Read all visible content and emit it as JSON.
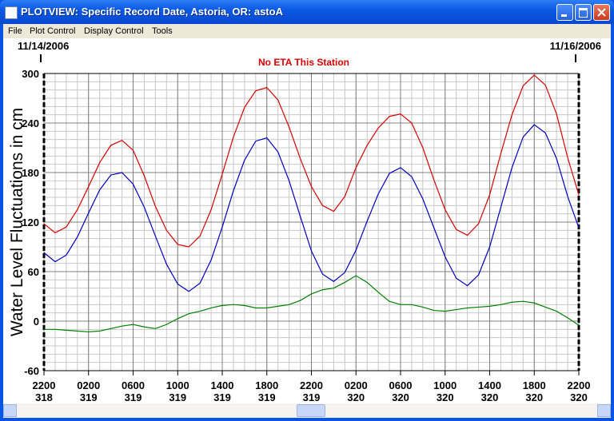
{
  "window": {
    "title": "PLOTVIEW: Specific Record Date, Astoria, OR: astoA",
    "menu": [
      "File",
      "Plot Control",
      "Display Control",
      "Tools"
    ]
  },
  "chart_data": {
    "type": "line",
    "start_date": "11/14/2006",
    "end_date": "11/16/2006",
    "annotation": "No ETA This Station",
    "y_label": "Water Level Fluctuations in cm",
    "x": [
      0,
      1,
      2,
      3,
      4,
      5,
      6,
      7,
      8,
      9,
      10,
      11,
      12,
      13,
      14,
      15,
      16,
      17,
      18,
      19,
      20,
      21,
      22,
      23,
      24,
      25,
      26,
      27,
      28,
      29,
      30,
      31,
      32,
      33,
      34,
      35,
      36,
      37,
      38,
      39,
      40,
      41,
      42,
      43,
      44,
      45,
      46,
      47,
      48
    ],
    "xlim": [
      0,
      48
    ],
    "xticks": [
      {
        "value": 0,
        "label": "2200",
        "sublabel": "318"
      },
      {
        "value": 4,
        "label": "0200",
        "sublabel": "319"
      },
      {
        "value": 8,
        "label": "0600",
        "sublabel": "319"
      },
      {
        "value": 12,
        "label": "1000",
        "sublabel": "319"
      },
      {
        "value": 16,
        "label": "1400",
        "sublabel": "319"
      },
      {
        "value": 20,
        "label": "1800",
        "sublabel": "319"
      },
      {
        "value": 24,
        "label": "2200",
        "sublabel": "319"
      },
      {
        "value": 28,
        "label": "0200",
        "sublabel": "320"
      },
      {
        "value": 32,
        "label": "0600",
        "sublabel": "320"
      },
      {
        "value": 36,
        "label": "1000",
        "sublabel": "320"
      },
      {
        "value": 40,
        "label": "1400",
        "sublabel": "320"
      },
      {
        "value": 44,
        "label": "1800",
        "sublabel": "320"
      },
      {
        "value": 48,
        "label": "2200",
        "sublabel": "320"
      }
    ],
    "ylim": [
      -60,
      300
    ],
    "yticks": [
      -60,
      0,
      60,
      120,
      180,
      240,
      300
    ],
    "minor_yticks": [
      -50,
      -40,
      -30,
      -20,
      -10,
      10,
      20,
      30,
      40,
      50,
      70,
      80,
      90,
      100,
      110,
      130,
      140,
      150,
      160,
      170,
      190,
      200,
      210,
      220,
      230,
      250,
      260,
      270,
      280,
      290
    ],
    "grid": true,
    "series": [
      {
        "color": "#d80000",
        "values": [
          118,
          107,
          114,
          135,
          163,
          192,
          213,
          219,
          207,
          176,
          139,
          110,
          93,
          90,
          103,
          135,
          178,
          223,
          259,
          279,
          283,
          268,
          235,
          197,
          163,
          140,
          133,
          151,
          186,
          213,
          234,
          248,
          251,
          240,
          210,
          171,
          135,
          111,
          104,
          118,
          153,
          203,
          250,
          285,
          298,
          286,
          251,
          198,
          153
        ]
      },
      {
        "color": "#0000c0",
        "values": [
          83,
          72,
          80,
          102,
          131,
          159,
          177,
          180,
          166,
          138,
          103,
          69,
          45,
          36,
          46,
          74,
          114,
          158,
          195,
          218,
          222,
          205,
          170,
          127,
          85,
          57,
          48,
          59,
          86,
          121,
          154,
          179,
          186,
          175,
          148,
          113,
          78,
          52,
          43,
          56,
          90,
          138,
          186,
          223,
          238,
          228,
          197,
          151,
          113
        ]
      },
      {
        "color": "#008000",
        "values": [
          -10,
          -10,
          -11,
          -12,
          -13,
          -12,
          -9,
          -6,
          -4,
          -7,
          -9,
          -4,
          3,
          9,
          12,
          16,
          19,
          20,
          19,
          16,
          16,
          18,
          20,
          25,
          33,
          38,
          40,
          47,
          55,
          47,
          35,
          24,
          20,
          20,
          17,
          13,
          12,
          14,
          16,
          17,
          18,
          20,
          23,
          24,
          22,
          17,
          12,
          4,
          -5
        ]
      }
    ]
  }
}
